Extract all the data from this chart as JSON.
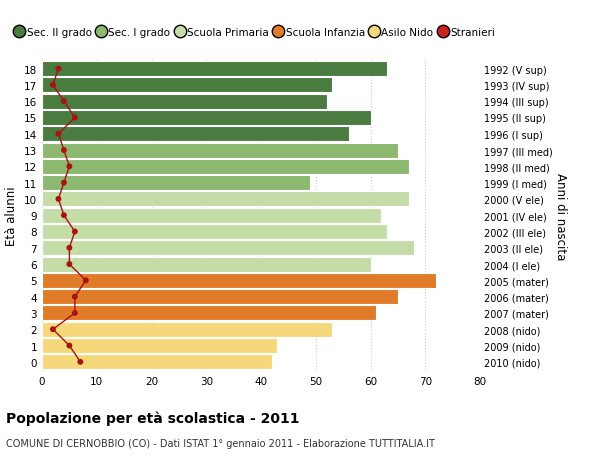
{
  "ages": [
    18,
    17,
    16,
    15,
    14,
    13,
    12,
    11,
    10,
    9,
    8,
    7,
    6,
    5,
    4,
    3,
    2,
    1,
    0
  ],
  "bar_values": [
    63,
    53,
    52,
    60,
    56,
    65,
    67,
    49,
    67,
    62,
    63,
    68,
    60,
    72,
    65,
    61,
    53,
    43,
    42
  ],
  "bar_colors": [
    "#4a7c40",
    "#4a7c40",
    "#4a7c40",
    "#4a7c40",
    "#4a7c40",
    "#8db870",
    "#8db870",
    "#8db870",
    "#c5dba8",
    "#c5dba8",
    "#c5dba8",
    "#c5dba8",
    "#c5dba8",
    "#e07b2a",
    "#e07b2a",
    "#e07b2a",
    "#f5d87a",
    "#f5d87a",
    "#f5d87a"
  ],
  "stranieri_values": [
    3,
    2,
    4,
    6,
    3,
    4,
    5,
    4,
    3,
    4,
    6,
    5,
    5,
    8,
    6,
    6,
    2,
    5,
    7
  ],
  "right_labels": [
    "1992 (V sup)",
    "1993 (IV sup)",
    "1994 (III sup)",
    "1995 (II sup)",
    "1996 (I sup)",
    "1997 (III med)",
    "1998 (II med)",
    "1999 (I med)",
    "2000 (V ele)",
    "2001 (IV ele)",
    "2002 (III ele)",
    "2003 (II ele)",
    "2004 (I ele)",
    "2005 (mater)",
    "2006 (mater)",
    "2007 (mater)",
    "2008 (nido)",
    "2009 (nido)",
    "2010 (nido)"
  ],
  "legend_labels": [
    "Sec. II grado",
    "Sec. I grado",
    "Scuola Primaria",
    "Scuola Infanzia",
    "Asilo Nido",
    "Stranieri"
  ],
  "legend_colors": [
    "#4a7c40",
    "#8db870",
    "#c5dba8",
    "#e07b2a",
    "#f5d87a",
    "#cc2222"
  ],
  "ylabel": "Età alunni",
  "right_ylabel": "Anni di nascita",
  "title": "Popolazione per età scolastica - 2011",
  "subtitle": "COMUNE DI CERNOBBIO (CO) - Dati ISTAT 1° gennaio 2011 - Elaborazione TUTTITALIA.IT",
  "xlim": [
    0,
    80
  ],
  "xticks": [
    0,
    10,
    20,
    30,
    40,
    50,
    60,
    70,
    80
  ],
  "bar_height": 0.92,
  "grid_color": "#cccccc",
  "stranieri_line_color": "#aa1111",
  "stranieri_dot_color": "#aa1111",
  "bg_color": "#ffffff"
}
